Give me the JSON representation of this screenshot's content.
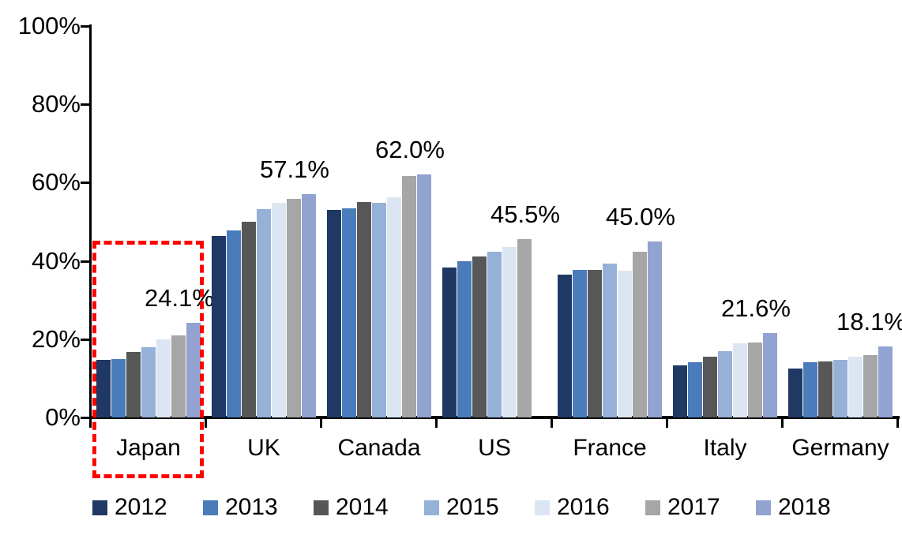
{
  "chart_data": {
    "type": "bar",
    "title": "",
    "xlabel": "",
    "ylabel": "",
    "ylim": [
      0,
      100
    ],
    "grid": false,
    "legend_position": "bottom",
    "categories": [
      "Japan",
      "UK",
      "Canada",
      "US",
      "France",
      "Italy",
      "Germany"
    ],
    "series": [
      {
        "name": "2012",
        "color": "#1F3864",
        "values": [
          14.8,
          46.3,
          53.0,
          38.3,
          36.5,
          13.3,
          12.5
        ]
      },
      {
        "name": "2013",
        "color": "#4A7CBB",
        "values": [
          15.0,
          47.8,
          53.5,
          40.0,
          37.8,
          14.1,
          14.1
        ]
      },
      {
        "name": "2014",
        "color": "#575757",
        "values": [
          16.7,
          50.0,
          55.0,
          41.1,
          37.7,
          15.5,
          14.3
        ]
      },
      {
        "name": "2015",
        "color": "#95B1D8",
        "values": [
          18.0,
          53.2,
          54.8,
          42.3,
          39.4,
          16.9,
          14.7
        ]
      },
      {
        "name": "2016",
        "color": "#DCE6F2",
        "values": [
          20.0,
          54.8,
          56.3,
          43.6,
          37.4,
          18.9,
          15.5
        ]
      },
      {
        "name": "2017",
        "color": "#A6A6A6",
        "values": [
          21.0,
          55.9,
          61.7,
          45.5,
          42.4,
          19.1,
          15.9
        ]
      },
      {
        "name": "2018",
        "color": "#92A3D1",
        "values": [
          24.1,
          57.1,
          62.0,
          null,
          45.0,
          21.6,
          18.1
        ]
      }
    ],
    "data_labels": [
      "24.1%",
      "57.1%",
      "62.0%",
      "45.5%",
      "45.0%",
      "21.6%",
      "18.1%"
    ],
    "y_ticks": [
      {
        "value": 0,
        "label": "0%"
      },
      {
        "value": 20,
        "label": "20%"
      },
      {
        "value": 40,
        "label": "40%"
      },
      {
        "value": 60,
        "label": "60%"
      },
      {
        "value": 80,
        "label": "80%"
      },
      {
        "value": 100,
        "label": "100%"
      }
    ],
    "annotation": {
      "type": "dashed-box",
      "target_category": "Japan",
      "color": "#FF0000"
    },
    "colors": {
      "axis": "#000000",
      "background": "#FFFFFF",
      "highlight": "#FF0000"
    }
  }
}
